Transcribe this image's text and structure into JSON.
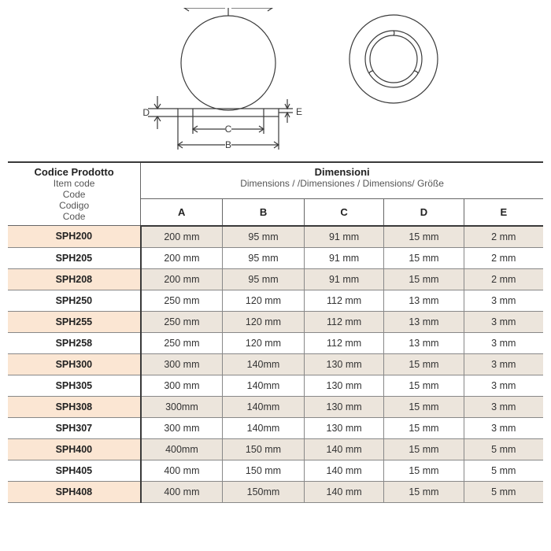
{
  "diagram": {
    "stroke": "#3a3a3a",
    "stroke_width": 1.2,
    "labels": {
      "A": "A",
      "B": "B",
      "C": "C",
      "D": "D",
      "E": "E"
    }
  },
  "table": {
    "header": {
      "product": {
        "title": "Codice Prodotto",
        "subs": [
          "Item code",
          "Code",
          "Codigo",
          "Code"
        ]
      },
      "dimensions": {
        "title": "Dimensioni",
        "sub": "Dimensions / /Dimensiones / Dimensions/ Größe"
      },
      "cols": [
        "A",
        "B",
        "C",
        "D",
        "E"
      ]
    },
    "rows": [
      {
        "code": "SPH200",
        "vals": [
          "200 mm",
          "95 mm",
          "91 mm",
          "15 mm",
          "2  mm"
        ],
        "alt": true
      },
      {
        "code": "SPH205",
        "vals": [
          "200 mm",
          "95 mm",
          "91 mm",
          "15 mm",
          "2  mm"
        ],
        "alt": false
      },
      {
        "code": "SPH208",
        "vals": [
          "200 mm",
          "95 mm",
          "91 mm",
          "15 mm",
          "2  mm"
        ],
        "alt": true
      },
      {
        "code": "SPH250",
        "vals": [
          "250 mm",
          "120 mm",
          "112 mm",
          "13 mm",
          "3 mm"
        ],
        "alt": false
      },
      {
        "code": "SPH255",
        "vals": [
          "250 mm",
          "120 mm",
          "112 mm",
          "13 mm",
          "3 mm"
        ],
        "alt": true
      },
      {
        "code": "SPH258",
        "vals": [
          "250 mm",
          "120 mm",
          "112 mm",
          "13 mm",
          "3 mm"
        ],
        "alt": false
      },
      {
        "code": "SPH300",
        "vals": [
          "300 mm",
          "140mm",
          "130 mm",
          "15 mm",
          "3 mm"
        ],
        "alt": true
      },
      {
        "code": "SPH305",
        "vals": [
          "300 mm",
          "140mm",
          "130 mm",
          "15 mm",
          "3 mm"
        ],
        "alt": false
      },
      {
        "code": "SPH308",
        "vals": [
          "300mm",
          "140mm",
          "130 mm",
          "15 mm",
          "3 mm"
        ],
        "alt": true
      },
      {
        "code": "SPH307",
        "vals": [
          "300 mm",
          "140mm",
          "130 mm",
          "15 mm",
          "3 mm"
        ],
        "alt": false
      },
      {
        "code": "SPH400",
        "vals": [
          "400mm",
          "150 mm",
          "140 mm",
          "15 mm",
          "5 mm"
        ],
        "alt": true
      },
      {
        "code": "SPH405",
        "vals": [
          "400 mm",
          "150 mm",
          "140 mm",
          "15 mm",
          "5 mm"
        ],
        "alt": false
      },
      {
        "code": "SPH408",
        "vals": [
          "400 mm",
          "150mm",
          "140 mm",
          "15 mm",
          "5 mm"
        ],
        "alt": true
      }
    ],
    "colors": {
      "alt_code_bg": "#fbe6d3",
      "alt_dim_bg": "#ece5dc",
      "border_heavy": "#3a3a3a",
      "border_light": "#888888",
      "text_title": "#222222",
      "text_sub": "#555555"
    }
  }
}
